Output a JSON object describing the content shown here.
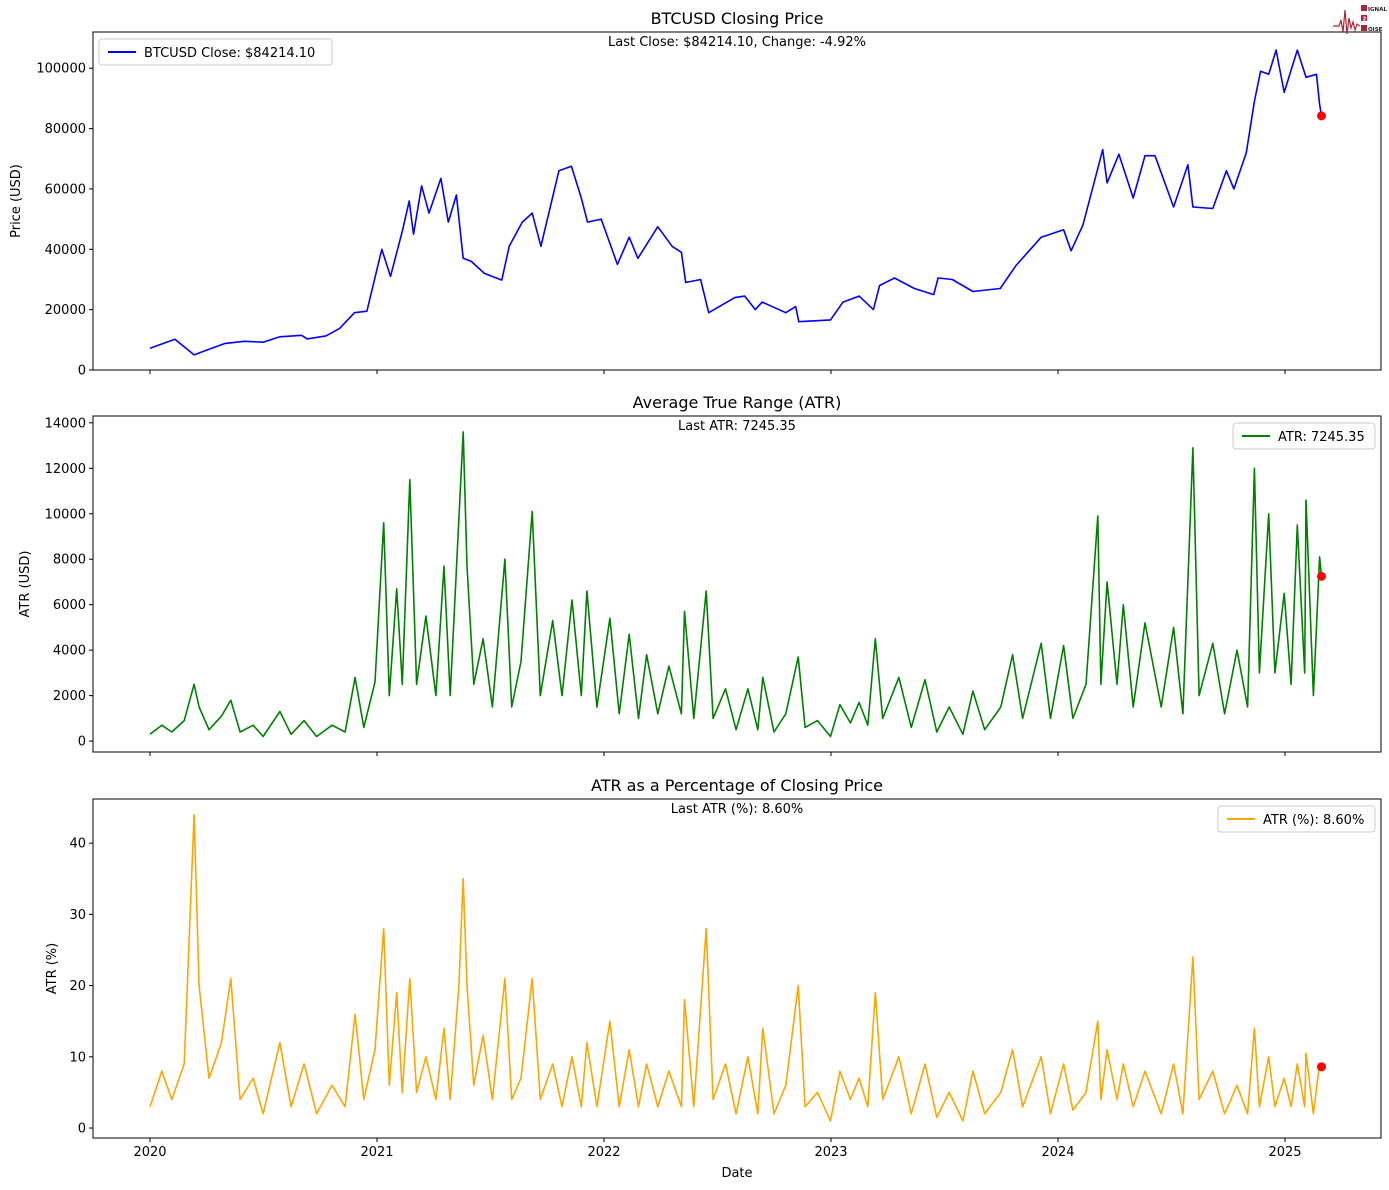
{
  "logo": {
    "text": [
      "SIGNAL",
      "2",
      "NOISE"
    ]
  },
  "xlabel": "Date",
  "chart_data": [
    {
      "type": "line",
      "title": "BTCUSD Closing Price",
      "annotation": "Last Close: $84214.10, Change: -4.92%",
      "ylabel": "Price (USD)",
      "ylim": [
        0,
        112000
      ],
      "yticks": [
        0,
        20000,
        40000,
        60000,
        80000,
        100000
      ],
      "xticks": [
        "2020",
        "2021",
        "2022",
        "2023",
        "2024",
        "2025"
      ],
      "legend": {
        "label": "BTCUSD Close: $84214.10",
        "position": "upper-left"
      },
      "color": "#0000ff",
      "last_marker_color": "#ff0000",
      "x": [
        "2020-01-01",
        "2020-02-10",
        "2020-03-12",
        "2020-04-01",
        "2020-05-01",
        "2020-06-01",
        "2020-07-01",
        "2020-07-28",
        "2020-09-01",
        "2020-09-10",
        "2020-10-10",
        "2020-11-01",
        "2020-11-25",
        "2020-12-15",
        "2021-01-08",
        "2021-01-22",
        "2021-02-10",
        "2021-02-21",
        "2021-02-28",
        "2021-03-13",
        "2021-03-25",
        "2021-04-13",
        "2021-04-25",
        "2021-05-08",
        "2021-05-19",
        "2021-06-01",
        "2021-06-22",
        "2021-07-20",
        "2021-08-01",
        "2021-08-22",
        "2021-09-07",
        "2021-09-21",
        "2021-10-20",
        "2021-11-09",
        "2021-11-25",
        "2021-12-05",
        "2021-12-27",
        "2022-01-22",
        "2022-02-10",
        "2022-02-24",
        "2022-03-28",
        "2022-04-20",
        "2022-05-05",
        "2022-05-12",
        "2022-06-05",
        "2022-06-18",
        "2022-07-30",
        "2022-08-15",
        "2022-09-01",
        "2022-09-12",
        "2022-10-20",
        "2022-11-05",
        "2022-11-10",
        "2022-12-31",
        "2023-01-20",
        "2023-02-15",
        "2023-03-10",
        "2023-03-20",
        "2023-04-13",
        "2023-05-15",
        "2023-06-15",
        "2023-06-22",
        "2023-07-15",
        "2023-08-17",
        "2023-09-30",
        "2023-10-25",
        "2023-12-05",
        "2024-01-10",
        "2024-01-22",
        "2024-02-10",
        "2024-02-28",
        "2024-03-13",
        "2024-03-20",
        "2024-04-08",
        "2024-05-01",
        "2024-05-20",
        "2024-06-05",
        "2024-07-05",
        "2024-07-28",
        "2024-08-05",
        "2024-09-06",
        "2024-09-28",
        "2024-10-10",
        "2024-10-30",
        "2024-11-12",
        "2024-11-22",
        "2024-12-05",
        "2024-12-17",
        "2024-12-30",
        "2025-01-20",
        "2025-02-03",
        "2025-02-20",
        "2025-02-25",
        "2025-02-28"
      ],
      "values": [
        7200,
        10200,
        5000,
        6600,
        8800,
        9500,
        9200,
        11000,
        11500,
        10300,
        11300,
        13800,
        19000,
        19500,
        40000,
        31000,
        46000,
        56000,
        45000,
        61000,
        52000,
        63500,
        49000,
        58000,
        37000,
        36000,
        32000,
        29800,
        41000,
        49000,
        52000,
        41000,
        66000,
        67500,
        57000,
        49000,
        50000,
        35000,
        44000,
        37000,
        47500,
        41000,
        39000,
        29000,
        30000,
        19000,
        24000,
        24500,
        20000,
        22500,
        19000,
        21000,
        16000,
        16600,
        22500,
        24500,
        20000,
        28000,
        30500,
        27000,
        25000,
        30500,
        30000,
        26000,
        27000,
        34500,
        44000,
        46500,
        39500,
        48000,
        62000,
        73000,
        62000,
        71500,
        57000,
        71000,
        71000,
        54000,
        68000,
        54000,
        53500,
        66000,
        60000,
        72000,
        89000,
        99000,
        98000,
        106000,
        92000,
        106000,
        97000,
        98000,
        88000,
        84214.1
      ]
    },
    {
      "type": "line",
      "title": "Average True Range (ATR)",
      "annotation": "Last ATR: 7245.35",
      "ylabel": "ATR (USD)",
      "ylim": [
        -480,
        14300
      ],
      "yticks": [
        0,
        2000,
        4000,
        6000,
        8000,
        10000,
        12000,
        14000
      ],
      "xticks": [
        "2020",
        "2021",
        "2022",
        "2023",
        "2024",
        "2025"
      ],
      "legend": {
        "label": "ATR: 7245.35",
        "position": "upper-right"
      },
      "color": "#008000",
      "last_marker_color": "#ff0000",
      "x": [
        "2020-01-01",
        "2020-01-20",
        "2020-02-05",
        "2020-02-25",
        "2020-03-12",
        "2020-03-20",
        "2020-04-05",
        "2020-04-25",
        "2020-05-10",
        "2020-05-25",
        "2020-06-15",
        "2020-07-01",
        "2020-07-28",
        "2020-08-15",
        "2020-09-05",
        "2020-09-25",
        "2020-10-20",
        "2020-11-10",
        "2020-11-26",
        "2020-12-10",
        "2020-12-28",
        "2021-01-11",
        "2021-01-20",
        "2021-02-01",
        "2021-02-10",
        "2021-02-22",
        "2021-03-05",
        "2021-03-20",
        "2021-04-05",
        "2021-04-18",
        "2021-04-28",
        "2021-05-12",
        "2021-05-19",
        "2021-05-25",
        "2021-06-05",
        "2021-06-20",
        "2021-07-05",
        "2021-07-25",
        "2021-08-05",
        "2021-08-20",
        "2021-09-07",
        "2021-09-20",
        "2021-10-10",
        "2021-10-25",
        "2021-11-10",
        "2021-11-25",
        "2021-12-04",
        "2021-12-20",
        "2022-01-10",
        "2022-01-25",
        "2022-02-10",
        "2022-02-25",
        "2022-03-10",
        "2022-03-28",
        "2022-04-15",
        "2022-05-05",
        "2022-05-10",
        "2022-05-25",
        "2022-06-14",
        "2022-06-25",
        "2022-07-15",
        "2022-08-01",
        "2022-08-20",
        "2022-09-05",
        "2022-09-13",
        "2022-10-01",
        "2022-10-20",
        "2022-11-09",
        "2022-11-20",
        "2022-12-10",
        "2022-12-31",
        "2023-01-15",
        "2023-02-01",
        "2023-02-15",
        "2023-03-01",
        "2023-03-13",
        "2023-03-25",
        "2023-04-20",
        "2023-05-10",
        "2023-06-01",
        "2023-06-20",
        "2023-07-10",
        "2023-08-01",
        "2023-08-17",
        "2023-09-05",
        "2023-10-01",
        "2023-10-20",
        "2023-11-05",
        "2023-12-05",
        "2023-12-20",
        "2024-01-10",
        "2024-01-25",
        "2024-02-15",
        "2024-03-05",
        "2024-03-10",
        "2024-03-20",
        "2024-04-05",
        "2024-04-15",
        "2024-05-01",
        "2024-05-20",
        "2024-06-15",
        "2024-07-05",
        "2024-07-20",
        "2024-08-05",
        "2024-08-15",
        "2024-09-06",
        "2024-09-25",
        "2024-10-15",
        "2024-11-01",
        "2024-11-12",
        "2024-11-20",
        "2024-12-05",
        "2024-12-15",
        "2024-12-30",
        "2025-01-10",
        "2025-01-20",
        "2025-02-01",
        "2025-02-03",
        "2025-02-15",
        "2025-02-25",
        "2025-02-28"
      ],
      "values": [
        300,
        700,
        400,
        900,
        2500,
        1500,
        500,
        1100,
        1800,
        400,
        700,
        200,
        1300,
        300,
        900,
        200,
        700,
        400,
        2800,
        600,
        2600,
        9600,
        2000,
        6700,
        2500,
        11500,
        2500,
        5500,
        2000,
        7700,
        2000,
        9800,
        13600,
        7700,
        2500,
        4500,
        1500,
        8000,
        1500,
        3500,
        10100,
        2000,
        5300,
        2000,
        6200,
        2000,
        6600,
        1500,
        5400,
        1200,
        4700,
        1000,
        3800,
        1200,
        3300,
        1200,
        5700,
        1000,
        6600,
        1000,
        2300,
        500,
        2300,
        500,
        2800,
        400,
        1200,
        3700,
        600,
        900,
        200,
        1600,
        800,
        1700,
        700,
        4500,
        1000,
        2800,
        600,
        2700,
        400,
        1500,
        300,
        2200,
        500,
        1500,
        3800,
        1000,
        4300,
        1000,
        4200,
        1000,
        2500,
        9900,
        2500,
        7000,
        2500,
        6000,
        1500,
        5200,
        1500,
        5000,
        1200,
        12900,
        2000,
        4300,
        1200,
        4000,
        1500,
        12000,
        3000,
        10000,
        3000,
        6500,
        2500,
        9500,
        3000,
        10600,
        2000,
        8100,
        7245.35
      ]
    },
    {
      "type": "line",
      "title": "ATR as a Percentage of Closing Price",
      "annotation": "Last ATR (%): 8.60%",
      "ylabel": "ATR (%)",
      "ylim": [
        -1.4,
        46.2
      ],
      "yticks": [
        0,
        10,
        20,
        30,
        40
      ],
      "xticks": [
        "2020",
        "2021",
        "2022",
        "2023",
        "2024",
        "2025"
      ],
      "legend": {
        "label": "ATR (%): 8.60%",
        "position": "upper-right"
      },
      "color": "#ffa500",
      "last_marker_color": "#ff0000",
      "values": [
        3,
        8,
        4,
        9,
        44,
        20,
        7,
        12,
        21,
        4,
        7,
        2,
        12,
        3,
        9,
        2,
        6,
        3,
        16,
        4,
        11,
        28,
        6,
        19,
        5,
        21,
        5,
        10,
        4,
        14,
        4,
        20,
        35,
        20,
        6,
        13,
        4,
        21,
        4,
        7,
        21,
        4,
        9,
        3,
        10,
        3,
        12,
        3,
        15,
        3,
        11,
        3,
        9,
        3,
        8,
        3,
        18,
        3,
        28,
        4,
        9,
        2,
        10,
        2,
        14,
        2,
        6,
        20,
        3,
        5,
        1,
        8,
        4,
        7,
        3,
        19,
        4,
        10,
        2,
        9,
        1.5,
        5,
        1,
        8,
        2,
        5,
        11,
        3,
        10,
        2,
        9,
        2.5,
        5,
        15,
        4,
        11,
        4,
        9,
        3,
        8,
        2,
        9,
        2,
        24,
        4,
        8,
        2,
        6,
        2,
        14,
        3,
        10,
        3,
        7,
        3,
        9,
        3,
        10.5,
        2,
        9,
        8.6
      ]
    }
  ]
}
